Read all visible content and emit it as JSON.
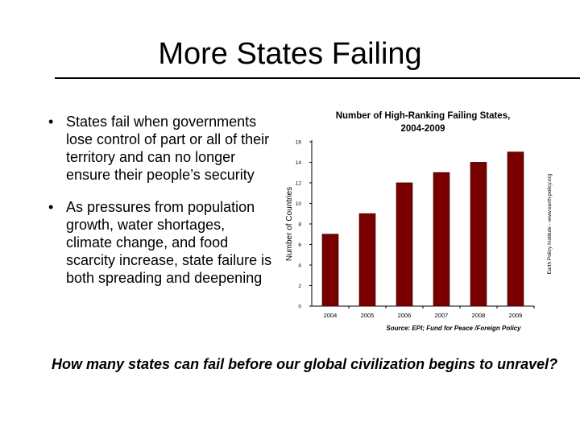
{
  "slide": {
    "title": "More States Failing",
    "bullets": [
      "States fail when governments lose control of part or all of their territory and can no longer ensure their people’s security",
      "As pressures from population growth, water shortages, climate change, and food scarcity increase, state failure is both spreading and deepening"
    ],
    "bullet_marker": "•",
    "question": "How many states can fail before our global civilization begins to unravel?"
  },
  "chart_data": {
    "type": "bar",
    "title_line1": "Number of High-Ranking Failing States,",
    "title_line2": "2004-2009",
    "ylabel": "Number of Countries",
    "categories": [
      "2004",
      "2005",
      "2006",
      "2007",
      "2008",
      "2009"
    ],
    "values": [
      7,
      9,
      12,
      13,
      14,
      15
    ],
    "ylim": [
      0,
      16
    ],
    "yticks": [
      0,
      2,
      4,
      6,
      8,
      10,
      12,
      14,
      16
    ],
    "source": "Source: EPI; Fund for Peace /Foreign Policy",
    "side_credit": "Earth Policy Institute - www.earth-policy.org",
    "bar_color": "#7a0000",
    "grid": false
  }
}
